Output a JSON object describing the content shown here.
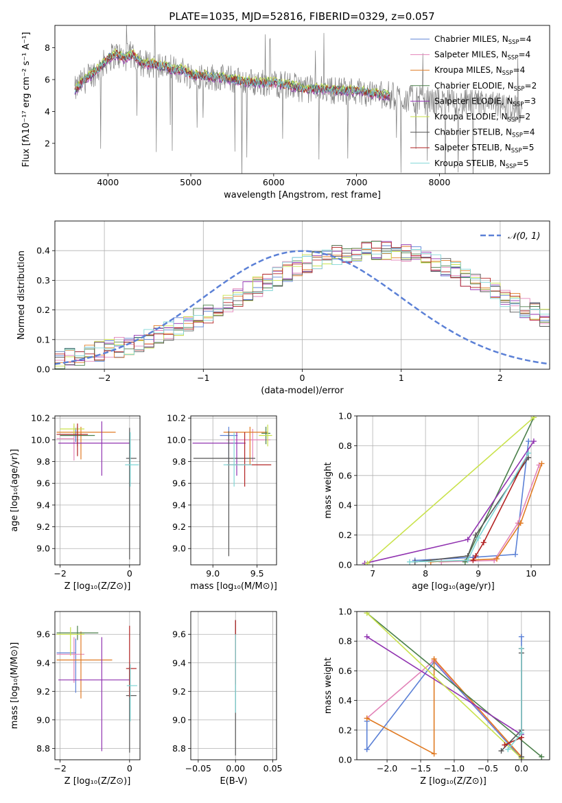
{
  "figure": {
    "title": "PLATE=1035, MJD=52816, FIBERID=0329, z=0.057"
  },
  "chart_data": [
    {
      "id": "spectrum",
      "type": "line",
      "title": "PLATE=1035, MJD=52816, FIBERID=0329, z=0.057",
      "xlabel": "wavelength [Angstrom, rest frame]",
      "ylabel": "Flux [fλ10⁻¹⁷ erg cm⁻² s⁻¹ A⁻¹]",
      "xlim": [
        3360,
        9330
      ],
      "ylim": [
        0.1,
        9.4
      ],
      "xticks": [
        4000,
        5000,
        6000,
        7000,
        8000
      ],
      "yticks": [
        2,
        4,
        6,
        8
      ],
      "grid": false,
      "legend_position": "upper-right",
      "data_color": "#7f7f7f",
      "data": {
        "name": "",
        "color": "#7f7f7f",
        "x": [
          3600,
          3700,
          3800,
          3900,
          4000,
          4100,
          4200,
          4300,
          4400,
          4500,
          4600,
          4700,
          4800,
          4900,
          5000,
          5200,
          5400,
          5600,
          5800,
          6000,
          6200,
          6400,
          6600,
          6800,
          7000,
          7200,
          7400,
          7600,
          7800,
          8000,
          8200,
          8400,
          8600,
          8800,
          9000
        ],
        "y": [
          5.3,
          5.9,
          6.3,
          6.7,
          7.3,
          7.6,
          7.3,
          7.6,
          7.0,
          7.0,
          6.9,
          6.8,
          6.6,
          6.6,
          6.3,
          6.2,
          6.1,
          5.9,
          5.8,
          5.8,
          5.6,
          5.4,
          5.4,
          5.3,
          5.3,
          5.1,
          5.0,
          4.8,
          4.7,
          4.6,
          4.5,
          4.5,
          4.4,
          4.3,
          4.1
        ]
      },
      "model_range": [
        3600,
        7400
      ],
      "series": [
        {
          "name": "Chabrier MILES, N<sub>SSP</sub>=4",
          "label_main": "Chabrier MILES, N",
          "label_sub": "SSP",
          "label_tail": "=4",
          "color": "#5b80d6",
          "offset": 0.05
        },
        {
          "name": "Salpeter MILES, N<sub>SSP</sub>=4",
          "label_main": "Salpeter MILES, N",
          "label_sub": "SSP",
          "label_tail": "=4",
          "color": "#e283b8",
          "offset": -0.05
        },
        {
          "name": "Kroupa MILES, N<sub>SSP</sub>=4",
          "label_main": "Kroupa MILES, N",
          "label_sub": "SSP",
          "label_tail": "=4",
          "color": "#e07a22",
          "offset": 0.0
        },
        {
          "name": "Chabrier ELODIE, N<sub>SSP</sub>=2",
          "label_main": "Chabrier ELODIE, N",
          "label_sub": "SSP",
          "label_tail": "=2",
          "color": "#4a7f4a",
          "offset": 0.1
        },
        {
          "name": "Salpeter ELODIE, N<sub>SSP</sub>=3",
          "label_main": "Salpeter ELODIE, N",
          "label_sub": "SSP",
          "label_tail": "=3",
          "color": "#9032b0",
          "offset": -0.1
        },
        {
          "name": "Kroupa ELODIE, N<sub>SSP</sub>=2",
          "label_main": "Kroupa ELODIE, N",
          "label_sub": "SSP",
          "label_tail": "=2",
          "color": "#c9e24b",
          "offset": 0.15
        },
        {
          "name": "Chabrier STELIB, N<sub>SSP</sub>=4",
          "label_main": "Chabrier STELIB, N",
          "label_sub": "SSP",
          "label_tail": "=4",
          "color": "#555555",
          "offset": -0.02
        },
        {
          "name": "Salpeter STELIB, N<sub>SSP</sub>=5",
          "label_main": "Salpeter STELIB, N",
          "label_sub": "SSP",
          "label_tail": "=5",
          "color": "#b22222",
          "offset": 0.02
        },
        {
          "name": "Kroupa STELIB, N<sub>SSP</sub>=5",
          "label_main": "Kroupa STELIB, N",
          "label_sub": "SSP",
          "label_tail": "=5",
          "color": "#7fd6d6",
          "offset": 0.0
        }
      ]
    },
    {
      "id": "residuals",
      "type": "line",
      "xlabel": "(data-model)/error",
      "ylabel": "Normed distribution",
      "xlim": [
        -2.5,
        2.5
      ],
      "ylim": [
        0.0,
        0.5
      ],
      "xticks": [
        -2,
        -1,
        0,
        1,
        2
      ],
      "yticks": [
        0.0,
        0.1,
        0.2,
        0.3,
        0.4
      ],
      "grid": true,
      "legend_position": "upper-right",
      "bin_width": 0.1,
      "bin_start": -2.5,
      "base_profile": [
        0.033,
        0.042,
        0.047,
        0.054,
        0.06,
        0.067,
        0.074,
        0.083,
        0.093,
        0.104,
        0.116,
        0.129,
        0.143,
        0.158,
        0.174,
        0.19,
        0.207,
        0.225,
        0.243,
        0.261,
        0.279,
        0.296,
        0.313,
        0.329,
        0.344,
        0.357,
        0.369,
        0.379,
        0.387,
        0.393,
        0.397,
        0.4,
        0.399,
        0.397,
        0.393,
        0.387,
        0.379,
        0.369,
        0.357,
        0.344,
        0.329,
        0.313,
        0.296,
        0.279,
        0.261,
        0.243,
        0.225,
        0.207,
        0.19,
        0.174,
        0.158,
        0.143,
        0.129,
        0.116,
        0.104,
        0.093,
        0.083,
        0.074,
        0.067,
        0.06,
        0.054,
        0.047,
        0.042,
        0.033
      ],
      "gaussian": {
        "name": "𝒩(0, 1)",
        "color": "#5b80d6",
        "mean": 0,
        "sigma": 1
      }
    },
    {
      "id": "age-vs-Z",
      "type": "scatter",
      "xlabel": "Z [log₁₀(Z/Z⊙)]",
      "ylabel": "age  [log₁₀(age/yr)]",
      "xlim": [
        -2.15,
        0.3
      ],
      "ylim": [
        8.85,
        10.22
      ],
      "xticks": [
        -2,
        0
      ],
      "yticks": [
        9.0,
        9.2,
        9.4,
        9.6,
        9.8,
        10.0,
        10.2
      ],
      "grid": true,
      "points": [
        {
          "x": -1.55,
          "xerr": [
            0.45,
            0.0
          ],
          "y": 10.04,
          "yerr": [
            0.06,
            0.07
          ],
          "color": "#5b80d6"
        },
        {
          "x": -1.6,
          "xerr": [
            0.5,
            0.0
          ],
          "y": 10.01,
          "yerr": [
            0.2,
            0.12
          ],
          "color": "#e283b8"
        },
        {
          "x": -1.4,
          "xerr": [
            0.7,
            1.0
          ],
          "y": 10.07,
          "yerr": [
            0.25,
            0.05
          ],
          "color": "#e07a22"
        },
        {
          "x": -1.5,
          "xerr": [
            0.5,
            0.5
          ],
          "y": 10.04,
          "yerr": [
            0.1,
            0.08
          ],
          "color": "#4a7f4a"
        },
        {
          "x": -0.8,
          "xerr": [
            1.25,
            0.8
          ],
          "y": 9.97,
          "yerr": [
            0.3,
            0.2
          ],
          "color": "#9032b0"
        },
        {
          "x": -1.6,
          "xerr": [
            0.4,
            0.3
          ],
          "y": 10.1,
          "yerr": [
            0.05,
            0.05
          ],
          "color": "#c9e24b"
        },
        {
          "x": 0.0,
          "xerr": [
            0.1,
            0.2
          ],
          "y": 9.83,
          "yerr": [
            0.93,
            0.28
          ],
          "color": "#555555"
        },
        {
          "x": -1.5,
          "xerr": [
            0.6,
            0.3
          ],
          "y": 10.05,
          "yerr": [
            0.2,
            0.1
          ],
          "color": "#b22222"
        },
        {
          "x": 0.02,
          "xerr": [
            0.15,
            0.25
          ],
          "y": 9.77,
          "yerr": [
            0.2,
            0.3
          ],
          "color": "#7fd6d6"
        }
      ]
    },
    {
      "id": "age-vs-mass",
      "type": "scatter",
      "xlabel": "mass [log₁₀(M/M⊙)]",
      "ylabel": "",
      "xlim": [
        8.75,
        9.72
      ],
      "ylim": [
        8.85,
        10.22
      ],
      "xticks": [
        9.0,
        9.5
      ],
      "yticks": [
        9.0,
        9.2,
        9.4,
        9.6,
        9.8,
        10.0,
        10.2
      ],
      "grid": true,
      "points": [
        {
          "x": 9.18,
          "xerr": [
            0.1,
            0.1
          ],
          "y": 10.04,
          "yerr": [
            0.25,
            0.08
          ],
          "color": "#5b80d6"
        },
        {
          "x": 9.45,
          "xerr": [
            0.3,
            0.2
          ],
          "y": 10.0,
          "yerr": [
            0.2,
            0.1
          ],
          "color": "#e283b8"
        },
        {
          "x": 9.42,
          "xerr": [
            0.3,
            0.2
          ],
          "y": 10.07,
          "yerr": [
            0.3,
            0.05
          ],
          "color": "#e07a22"
        },
        {
          "x": 9.6,
          "xerr": [
            0.05,
            0.05
          ],
          "y": 10.06,
          "yerr": [
            0.1,
            0.06
          ],
          "color": "#4a7f4a"
        },
        {
          "x": 9.27,
          "xerr": [
            0.5,
            0.1
          ],
          "y": 9.97,
          "yerr": [
            0.3,
            0.1
          ],
          "color": "#9032b0"
        },
        {
          "x": 9.62,
          "xerr": [
            0.1,
            0.05
          ],
          "y": 10.04,
          "yerr": [
            0.1,
            0.1
          ],
          "color": "#c9e24b"
        },
        {
          "x": 9.18,
          "xerr": [
            0.4,
            0.3
          ],
          "y": 9.83,
          "yerr": [
            0.9,
            0.25
          ],
          "color": "#555555"
        },
        {
          "x": 9.36,
          "xerr": [
            0.2,
            0.3
          ],
          "y": 9.77,
          "yerr": [
            0.2,
            0.3
          ],
          "color": "#b22222"
        },
        {
          "x": 9.24,
          "xerr": [
            0.12,
            0.2
          ],
          "y": 9.77,
          "yerr": [
            0.2,
            0.3
          ],
          "color": "#7fd6d6"
        }
      ]
    },
    {
      "id": "weight-vs-age",
      "type": "line",
      "xlabel": "age  [log₁₀(age/yr)]",
      "ylabel": "mass weight",
      "xlim": [
        6.7,
        10.35
      ],
      "ylim": [
        0.0,
        1.0
      ],
      "xticks": [
        7,
        8,
        9,
        10
      ],
      "yticks": [
        0.0,
        0.2,
        0.4,
        0.6,
        0.8,
        1.0
      ],
      "grid": true,
      "series": [
        {
          "color": "#5b80d6",
          "x": [
            7.8,
            8.9,
            9.7,
            9.95
          ],
          "y": [
            0.03,
            0.05,
            0.07,
            0.83
          ]
        },
        {
          "color": "#e283b8",
          "x": [
            8.3,
            9.3,
            9.75,
            10.15
          ],
          "y": [
            0.02,
            0.03,
            0.28,
            0.67
          ]
        },
        {
          "color": "#e07a22",
          "x": [
            8.1,
            9.35,
            9.8,
            10.2
          ],
          "y": [
            0.02,
            0.04,
            0.28,
            0.68
          ]
        },
        {
          "color": "#4a7f4a",
          "x": [
            8.75,
            10.05
          ],
          "y": [
            0.02,
            0.99
          ]
        },
        {
          "color": "#9032b0",
          "x": [
            6.85,
            8.8,
            10.05
          ],
          "y": [
            0.01,
            0.17,
            0.83
          ]
        },
        {
          "color": "#c9e24b",
          "x": [
            6.9,
            10.05
          ],
          "y": [
            0.01,
            0.99
          ]
        },
        {
          "color": "#555555",
          "x": [
            7.8,
            8.8,
            8.95,
            9.95
          ],
          "y": [
            0.02,
            0.06,
            0.2,
            0.72
          ]
        },
        {
          "color": "#b22222",
          "x": [
            8.9,
            8.95,
            9.1,
            9.95
          ],
          "y": [
            0.03,
            0.06,
            0.15,
            0.75
          ]
        },
        {
          "color": "#7fd6d6",
          "x": [
            7.7,
            8.8,
            9.0,
            9.95
          ],
          "y": [
            0.02,
            0.03,
            0.18,
            0.75
          ]
        }
      ]
    },
    {
      "id": "mass-vs-Z",
      "type": "scatter",
      "xlabel": "Z [log₁₀(Z/Z⊙)]",
      "ylabel": "mass [log₁₀(M/M⊙)]",
      "xlim": [
        -2.15,
        0.3
      ],
      "ylim": [
        8.72,
        9.76
      ],
      "xticks": [
        -2,
        0
      ],
      "yticks": [
        8.8,
        9.0,
        9.2,
        9.4,
        9.6
      ],
      "grid": true,
      "points": [
        {
          "x": -1.55,
          "xerr": [
            0.55,
            0.0
          ],
          "y": 9.47,
          "yerr": [
            0.28,
            0.1
          ],
          "color": "#5b80d6"
        },
        {
          "x": -1.6,
          "xerr": [
            0.5,
            0.3
          ],
          "y": 9.46,
          "yerr": [
            0.2,
            0.12
          ],
          "color": "#e283b8"
        },
        {
          "x": -1.4,
          "xerr": [
            0.7,
            0.9
          ],
          "y": 9.42,
          "yerr": [
            0.27,
            0.2
          ],
          "color": "#e07a22"
        },
        {
          "x": -1.5,
          "xerr": [
            0.6,
            0.6
          ],
          "y": 9.61,
          "yerr": [
            0.05,
            0.05
          ],
          "color": "#4a7f4a"
        },
        {
          "x": -0.8,
          "xerr": [
            1.25,
            0.8
          ],
          "y": 9.28,
          "yerr": [
            0.5,
            0.3
          ],
          "color": "#9032b0"
        },
        {
          "x": -1.7,
          "xerr": [
            0.4,
            0.4
          ],
          "y": 9.6,
          "yerr": [
            0.15,
            0.05
          ],
          "color": "#c9e24b"
        },
        {
          "x": 0.0,
          "xerr": [
            0.1,
            0.2
          ],
          "y": 9.17,
          "yerr": [
            0.4,
            0.2
          ],
          "color": "#555555"
        },
        {
          "x": 0.0,
          "xerr": [
            0.1,
            0.2
          ],
          "y": 9.36,
          "yerr": [
            0.2,
            0.3
          ],
          "color": "#b22222"
        },
        {
          "x": 0.02,
          "xerr": [
            0.1,
            0.2
          ],
          "y": 9.24,
          "yerr": [
            0.25,
            0.15
          ],
          "color": "#7fd6d6"
        }
      ]
    },
    {
      "id": "mass-vs-EBV",
      "type": "scatter",
      "xlabel": "E(B-V)",
      "ylabel": "",
      "xlim": [
        -0.06,
        0.055
      ],
      "ylim": [
        8.72,
        9.76
      ],
      "xticks": [
        -0.05,
        0.0,
        0.05
      ],
      "yticks": [
        8.8,
        9.0,
        9.2,
        9.4,
        9.6
      ],
      "grid": true,
      "points": [
        {
          "x": 0.0,
          "xerr": [
            0.0,
            0.0
          ],
          "y": 9.3,
          "yerr": [
            0.55,
            0.4
          ],
          "color": "#555555"
        },
        {
          "x": 0.0,
          "xerr": [
            0.0,
            0.0
          ],
          "y": 9.45,
          "yerr": [
            0.2,
            0.25
          ],
          "color": "#b22222"
        },
        {
          "x": 0.0,
          "xerr": [
            0.0,
            0.0
          ],
          "y": 9.35,
          "yerr": [
            0.3,
            0.25
          ],
          "color": "#7fd6d6"
        }
      ]
    },
    {
      "id": "weight-vs-Z",
      "type": "line",
      "xlabel": "Z [log₁₀(Z/Z⊙)]",
      "ylabel": "mass weight",
      "xlim": [
        -2.45,
        0.42
      ],
      "ylim": [
        0.0,
        1.0
      ],
      "xticks": [
        -2.0,
        -1.5,
        -1.0,
        -0.5,
        0.0
      ],
      "yticks": [
        0.0,
        0.2,
        0.4,
        0.6,
        0.8,
        1.0
      ],
      "grid": true,
      "series": [
        {
          "color": "#5b80d6",
          "x": [
            -2.3,
            -2.3,
            -1.3,
            0.0,
            0.0
          ],
          "y": [
            0.26,
            0.07,
            0.66,
            0.01,
            0.83
          ]
        },
        {
          "color": "#e283b8",
          "x": [
            -2.3,
            -1.3,
            0.0
          ],
          "y": [
            0.28,
            0.67,
            0.02
          ]
        },
        {
          "color": "#e07a22",
          "x": [
            -2.3,
            -1.3,
            -1.3,
            0.0
          ],
          "y": [
            0.28,
            0.04,
            0.68,
            0.02
          ]
        },
        {
          "color": "#4a7f4a",
          "x": [
            -2.3,
            0.3
          ],
          "y": [
            0.99,
            0.02
          ]
        },
        {
          "color": "#9032b0",
          "x": [
            -2.3,
            0.0
          ],
          "y": [
            0.83,
            0.17
          ]
        },
        {
          "color": "#c9e24b",
          "x": [
            -2.3,
            0.0
          ],
          "y": [
            0.99,
            0.01
          ]
        },
        {
          "color": "#555555",
          "x": [
            -0.3,
            0.0,
            0.0,
            0.0
          ],
          "y": [
            0.06,
            0.2,
            0.72,
            0.02
          ]
        },
        {
          "color": "#b22222",
          "x": [
            -0.25,
            0.0,
            0.0
          ],
          "y": [
            0.1,
            0.15,
            0.75
          ]
        },
        {
          "color": "#7fd6d6",
          "x": [
            -0.2,
            0.0,
            0.0
          ],
          "y": [
            0.07,
            0.18,
            0.75
          ]
        }
      ]
    }
  ]
}
